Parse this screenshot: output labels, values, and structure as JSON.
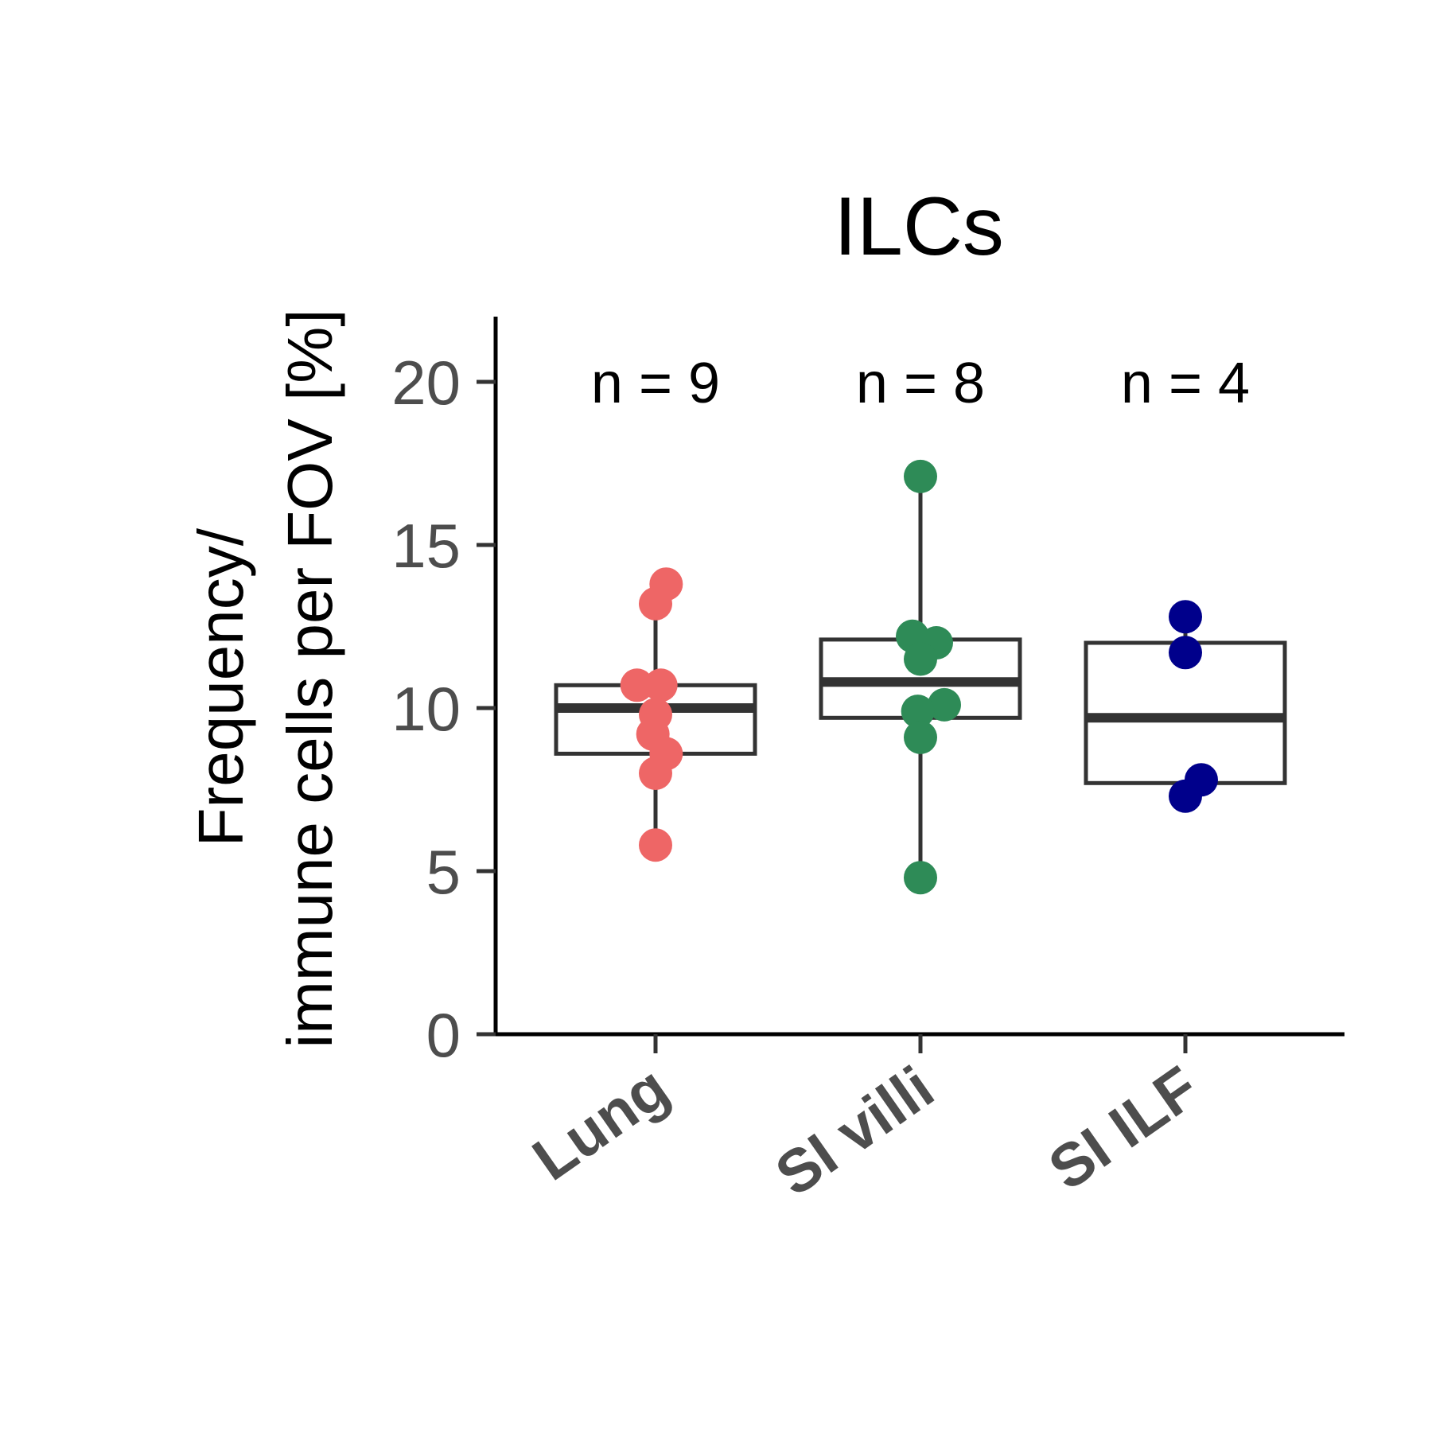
{
  "chart_data": {
    "type": "box",
    "title": "ILCs",
    "ylabel_lines": [
      "Frequency/",
      "immune cells per FOV [%]"
    ],
    "xlabel": "",
    "categories": [
      "Lung",
      "SI villi",
      "SI ILF"
    ],
    "ylim": [
      0,
      22
    ],
    "yticks": [
      0,
      5,
      10,
      15,
      20
    ],
    "grid": false,
    "legend": "none",
    "annotations": [
      "n = 9",
      "n = 8",
      "n = 4"
    ],
    "colors": [
      "#ee6666",
      "#2e8b57",
      "#00008b"
    ],
    "box_stroke": "#333333",
    "boxes": [
      {
        "q1": 8.6,
        "median": 10.0,
        "q3": 10.7,
        "whisker_low": 5.8,
        "whisker_high": 13.7
      },
      {
        "q1": 9.7,
        "median": 10.8,
        "q3": 12.1,
        "whisker_low": 4.8,
        "whisker_high": 17.1
      },
      {
        "q1": 7.7,
        "median": 9.7,
        "q3": 12.0,
        "whisker_low": 7.3,
        "whisker_high": 12.8
      }
    ],
    "points": [
      [
        {
          "y": 13.8,
          "jitter": 0.04
        },
        {
          "y": 13.2,
          "jitter": 0.0
        },
        {
          "y": 10.7,
          "jitter": -0.07
        },
        {
          "y": 10.7,
          "jitter": 0.02
        },
        {
          "y": 9.8,
          "jitter": 0.0
        },
        {
          "y": 9.2,
          "jitter": -0.01
        },
        {
          "y": 8.6,
          "jitter": 0.04
        },
        {
          "y": 8.0,
          "jitter": 0.0
        },
        {
          "y": 5.8,
          "jitter": 0.0
        }
      ],
      [
        {
          "y": 17.1,
          "jitter": 0.0
        },
        {
          "y": 12.2,
          "jitter": -0.03
        },
        {
          "y": 12.0,
          "jitter": 0.06
        },
        {
          "y": 11.5,
          "jitter": 0.0
        },
        {
          "y": 10.1,
          "jitter": 0.09
        },
        {
          "y": 9.9,
          "jitter": -0.01
        },
        {
          "y": 9.1,
          "jitter": 0.0
        },
        {
          "y": 4.8,
          "jitter": 0.0
        }
      ],
      [
        {
          "y": 12.8,
          "jitter": 0.0
        },
        {
          "y": 11.7,
          "jitter": 0.0
        },
        {
          "y": 7.8,
          "jitter": 0.06
        },
        {
          "y": 7.3,
          "jitter": 0.0
        }
      ]
    ]
  }
}
